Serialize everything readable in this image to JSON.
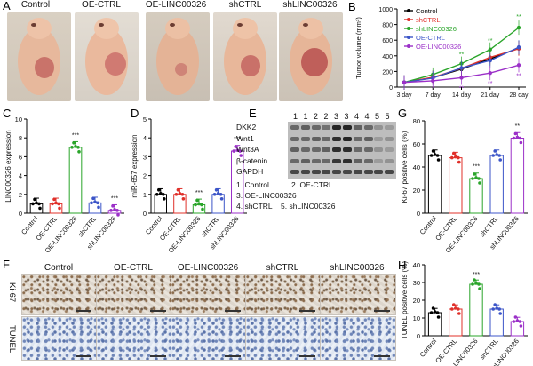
{
  "panel_letters": [
    "A",
    "B",
    "C",
    "D",
    "E",
    "F",
    "G",
    "H"
  ],
  "panelA": {
    "groups": [
      "Control",
      "OE-CTRL",
      "OE-LINC00326",
      "shCTRL",
      "shLINC00326"
    ]
  },
  "panelE": {
    "lane_numbers": [
      "1",
      "1",
      "2",
      "2",
      "3",
      "3",
      "4",
      "4",
      "5",
      "5"
    ],
    "bands": [
      "DKK2",
      "Wnt1",
      "Wnt3A",
      "β-catenin",
      "GAPDH"
    ],
    "legend": [
      "1. Control",
      "2. OE-CTRL",
      "3. OE-LINC00326",
      "4. shCTRL",
      "5. shLINC00326"
    ]
  },
  "panelF": {
    "groups": [
      "Control",
      "OE-CTRL",
      "OE-LINC00326",
      "shCTRL",
      "shLINC00326"
    ],
    "row_labels": [
      "Ki-67",
      "TUNEL"
    ]
  },
  "chart_data": [
    {
      "panel": "B",
      "type": "line",
      "x": [
        "3 day",
        "7 day",
        "14 day",
        "21 day",
        "28 day"
      ],
      "ylabel": "Tumor volume (mm³)",
      "ylim": [
        0,
        1000
      ],
      "yticks": [
        "0",
        "200",
        "400",
        "600",
        "800",
        "1000"
      ],
      "series": [
        {
          "name": "Control",
          "color": "#000000",
          "values": [
            60,
            120,
            230,
            360,
            500
          ]
        },
        {
          "name": "shCTRL",
          "color": "#e0302a",
          "values": [
            60,
            125,
            240,
            380,
            490
          ]
        },
        {
          "name": "shLINC00326",
          "color": "#2aa52a",
          "values": [
            60,
            160,
            300,
            480,
            760
          ]
        },
        {
          "name": "OE-CTRL",
          "color": "#3c55c8",
          "values": [
            60,
            115,
            245,
            340,
            510
          ]
        },
        {
          "name": "OE-LINC00326",
          "color": "#9b30c8",
          "values": [
            60,
            80,
            120,
            180,
            280
          ]
        }
      ],
      "annotations": [
        "**",
        "**",
        "**",
        "**",
        "**",
        "**",
        "**",
        "**"
      ]
    },
    {
      "panel": "C",
      "type": "bar",
      "categories": [
        "Control",
        "OE-CTRL",
        "OE-LINC00326",
        "shCTRL",
        "shLINC00326"
      ],
      "values": [
        1.0,
        1.0,
        7.0,
        1.1,
        0.3
      ],
      "colors": [
        "#000000",
        "#e0302a",
        "#2aa52a",
        "#3c55c8",
        "#9b30c8"
      ],
      "ylabel": "LINC00326 expression",
      "ylim": [
        0,
        10
      ],
      "yticks": [
        "0",
        "2",
        "4",
        "6",
        "8",
        "10"
      ],
      "annotations": [
        "***",
        "***"
      ]
    },
    {
      "panel": "D",
      "type": "bar",
      "categories": [
        "Control",
        "OE-CTRL",
        "OE-LINC00326",
        "shCTRL",
        "shLINC00326"
      ],
      "values": [
        1.0,
        1.0,
        0.45,
        1.0,
        3.3
      ],
      "colors": [
        "#000000",
        "#e0302a",
        "#2aa52a",
        "#3c55c8",
        "#9b30c8"
      ],
      "ylabel": "miR-657 expression",
      "ylim": [
        0,
        5
      ],
      "yticks": [
        "0",
        "1",
        "2",
        "3",
        "4",
        "5"
      ],
      "annotations": [
        "***",
        "***"
      ]
    },
    {
      "panel": "G",
      "type": "bar",
      "categories": [
        "Control",
        "OE-CTRL",
        "OE-LINC00326",
        "shCTRL",
        "shLINC00326"
      ],
      "values": [
        50,
        48,
        30,
        50,
        65
      ],
      "colors": [
        "#000000",
        "#e0302a",
        "#2aa52a",
        "#3c55c8",
        "#9b30c8"
      ],
      "ylabel": "Ki-67 positive cells (%)",
      "ylim": [
        0,
        80
      ],
      "yticks": [
        "0",
        "20",
        "40",
        "60",
        "80"
      ],
      "annotations": [
        "***",
        "**"
      ]
    },
    {
      "panel": "H",
      "type": "bar",
      "categories": [
        "Control",
        "OE-CTRL",
        "OE-LINC00326",
        "shCTRL",
        "shLINC00326"
      ],
      "values": [
        13,
        15,
        29,
        15,
        8
      ],
      "colors": [
        "#000000",
        "#e0302a",
        "#2aa52a",
        "#3c55c8",
        "#9b30c8"
      ],
      "ylabel": "TUNEL positive cells (%)",
      "ylim": [
        0,
        40
      ],
      "yticks": [
        "0",
        "10",
        "20",
        "30",
        "40"
      ],
      "annotations": [
        "***"
      ]
    }
  ]
}
